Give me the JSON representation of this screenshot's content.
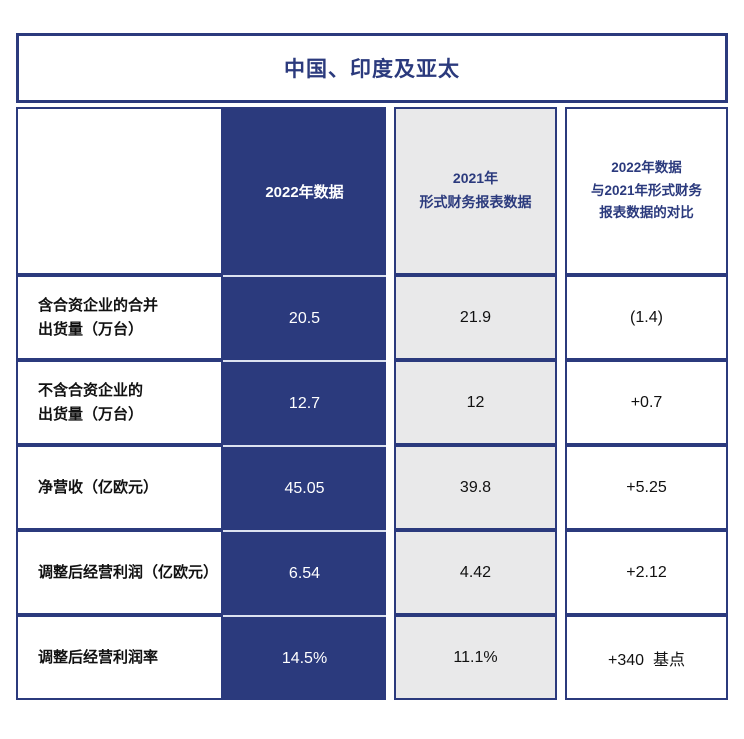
{
  "colors": {
    "primary_blue": "#2b3a7d",
    "cell_gray": "#e9e9ea",
    "divider_light": "#dce2f0",
    "text_dark": "#111111"
  },
  "chart_data": {
    "type": "table",
    "title": "中国、印度及亚太",
    "columns": [
      "",
      "2022年数据",
      "2021年\n形式财务报表数据",
      "2022年数据\n与2021年形式财务\n报表数据的对比"
    ],
    "rows": [
      {
        "label": "含合资企业的合并\n出货量（万台）",
        "y2022": "20.5",
        "y2021": "21.9",
        "delta": "(1.4)"
      },
      {
        "label": "不含合资企业的\n出货量（万台）",
        "y2022": "12.7",
        "y2021": "12",
        "delta": "+0.7"
      },
      {
        "label": "净营收（亿欧元）",
        "y2022": "45.05",
        "y2021": "39.8",
        "delta": "+5.25"
      },
      {
        "label": "调整后经营利润（亿欧元）",
        "y2022": "6.54",
        "y2021": "4.42",
        "delta": "+2.12"
      },
      {
        "label": "调整后经营利润率",
        "y2022": "14.5%",
        "y2021": "11.1%",
        "delta": "+340  基点"
      }
    ]
  }
}
